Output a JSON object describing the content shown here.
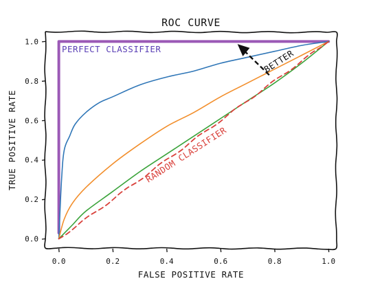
{
  "chart_data": {
    "type": "line",
    "title": "ROC CURVE",
    "xlabel": "FALSE POSITIVE RATE",
    "ylabel": "TRUE POSITIVE RATE",
    "xlim": [
      -0.05,
      1.03
    ],
    "ylim": [
      -0.05,
      1.05
    ],
    "x_ticks": [
      "0.0",
      "0.2",
      "0.4",
      "0.6",
      "0.8",
      "1.0"
    ],
    "y_ticks": [
      "0.0",
      "0.2",
      "0.4",
      "0.6",
      "0.8",
      "1.0"
    ],
    "grid": false,
    "legend": "none",
    "series": [
      {
        "color": "#9b59b6",
        "style": "solid",
        "width": 4,
        "x": [
          0.0,
          0.0,
          1.0
        ],
        "y": [
          0.03,
          1.0,
          1.0
        ]
      },
      {
        "color": "#2f76b7",
        "style": "solid",
        "width": 1.6,
        "x": [
          0.0,
          0.01,
          0.02,
          0.04,
          0.06,
          0.1,
          0.15,
          0.2,
          0.3,
          0.4,
          0.5,
          0.6,
          0.7,
          0.8,
          0.9,
          1.0
        ],
        "y": [
          0.0,
          0.3,
          0.45,
          0.52,
          0.58,
          0.64,
          0.69,
          0.72,
          0.78,
          0.82,
          0.85,
          0.89,
          0.92,
          0.95,
          0.98,
          1.0
        ]
      },
      {
        "color": "#f28e2b",
        "style": "solid",
        "width": 1.6,
        "x": [
          0.0,
          0.02,
          0.05,
          0.1,
          0.2,
          0.3,
          0.4,
          0.5,
          0.6,
          0.7,
          0.8,
          0.9,
          1.0
        ],
        "y": [
          0.0,
          0.1,
          0.18,
          0.26,
          0.38,
          0.48,
          0.57,
          0.64,
          0.72,
          0.79,
          0.86,
          0.93,
          1.0
        ]
      },
      {
        "color": "#3aa33a",
        "style": "solid",
        "width": 1.6,
        "x": [
          0.0,
          0.05,
          0.1,
          0.2,
          0.3,
          0.4,
          0.5,
          0.6,
          0.7,
          0.8,
          0.9,
          1.0
        ],
        "y": [
          0.0,
          0.07,
          0.14,
          0.24,
          0.34,
          0.43,
          0.52,
          0.61,
          0.7,
          0.79,
          0.89,
          1.0
        ]
      },
      {
        "name": "RANDOM CLASSIFIER",
        "color": "#d9403a",
        "style": "dashed",
        "width": 1.8,
        "x": [
          0.0,
          1.0
        ],
        "y": [
          0.0,
          1.0
        ]
      }
    ],
    "annotations": [
      {
        "text": "PERFECT CLASSIFIER",
        "color": "#5a3fb5"
      },
      {
        "text": "RANDOM CLASSIFIER",
        "color": "#d9403a"
      },
      {
        "text": "BETTER",
        "color": "#111111"
      }
    ]
  }
}
